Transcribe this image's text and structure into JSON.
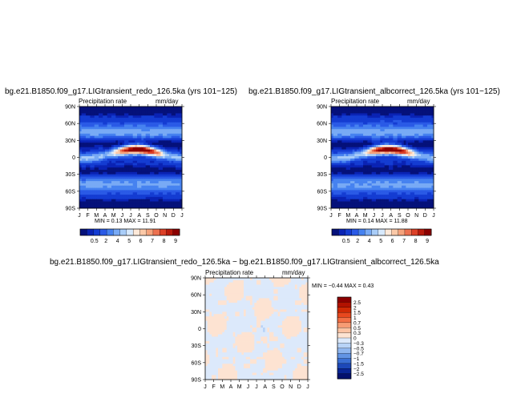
{
  "chart_data": [
    {
      "type": "heatmap",
      "title": "bg.e21.B1850.f09_g17.LIGtransient_redo_126.5ka (yrs 101−125)",
      "subtitle_left": "Precipitation rate",
      "subtitle_right": "mm/day",
      "x_ticks": [
        "J",
        "F",
        "M",
        "A",
        "M",
        "J",
        "J",
        "A",
        "S",
        "O",
        "N",
        "D",
        "J"
      ],
      "y_ticks": [
        "90N",
        "60N",
        "30N",
        "0",
        "30S",
        "60S",
        "90S"
      ],
      "ylim": [
        -90,
        90
      ],
      "stats_text": "MIN =   0.13  MAX =   11.91",
      "colorbar": {
        "levels": [
          "0.5",
          "2",
          "4",
          "5",
          "6",
          "7",
          "8",
          "9"
        ],
        "colors": [
          "#05117a",
          "#0a23b4",
          "#143cd2",
          "#2a5ae6",
          "#4682f0",
          "#78aaf5",
          "#a9cdf8",
          "#d7e9fc",
          "#fde9d9",
          "#fbc9a8",
          "#f5a37c",
          "#ec7150",
          "#dc4027",
          "#b81a0c",
          "#8c0000"
        ]
      }
    },
    {
      "type": "heatmap",
      "title": "bg.e21.B1850.f09_g17.LIGtransient_albcorrect_126.5ka (yrs 101−125)",
      "subtitle_left": "Precipitation rate",
      "subtitle_right": "mm/day",
      "x_ticks": [
        "J",
        "F",
        "M",
        "A",
        "M",
        "J",
        "J",
        "A",
        "S",
        "O",
        "N",
        "D",
        "J"
      ],
      "y_ticks": [
        "90N",
        "60N",
        "30N",
        "0",
        "30S",
        "60S",
        "90S"
      ],
      "ylim": [
        -90,
        90
      ],
      "stats_text": "MIN =   0.14  MAX =   11.88",
      "colorbar": {
        "levels": [
          "0.5",
          "2",
          "4",
          "5",
          "6",
          "7",
          "8",
          "9"
        ],
        "colors": [
          "#05117a",
          "#0a23b4",
          "#143cd2",
          "#2a5ae6",
          "#4682f0",
          "#78aaf5",
          "#a9cdf8",
          "#d7e9fc",
          "#fde9d9",
          "#fbc9a8",
          "#f5a37c",
          "#ec7150",
          "#dc4027",
          "#b81a0c",
          "#8c0000"
        ]
      }
    },
    {
      "type": "heatmap",
      "title": "bg.e21.B1850.f09_g17.LIGtransient_redo_126.5ka − bg.e21.B1850.f09_g17.LIGtransient_albcorrect_126.5ka",
      "subtitle_left": "Precipitation rate",
      "subtitle_right": "mm/day",
      "x_ticks": [
        "J",
        "F",
        "M",
        "A",
        "M",
        "J",
        "J",
        "A",
        "S",
        "O",
        "N",
        "D",
        "J"
      ],
      "y_ticks": [
        "90N",
        "60N",
        "30N",
        "0",
        "30S",
        "60S",
        "90S"
      ],
      "ylim": [
        -90,
        90
      ],
      "stats_text": "MIN =   −0.44  MAX =    0.43",
      "colorbar": {
        "levels": [
          "2.5",
          "2",
          "1.5",
          "1",
          "0.7",
          "0.5",
          "0.3",
          "0",
          "−0.3",
          "−0.5",
          "−0.7",
          "−1",
          "−1.5",
          "−2",
          "−2.5"
        ],
        "colors": [
          "#8c0000",
          "#b21200",
          "#d02a05",
          "#e8481e",
          "#f26f45",
          "#f79c74",
          "#fbc3a3",
          "#fde3d2",
          "#dce9fb",
          "#b8d3f7",
          "#8fb6ef",
          "#6294e4",
          "#3a6fd4",
          "#1d48b8",
          "#0a2696",
          "#04116e"
        ]
      }
    }
  ]
}
